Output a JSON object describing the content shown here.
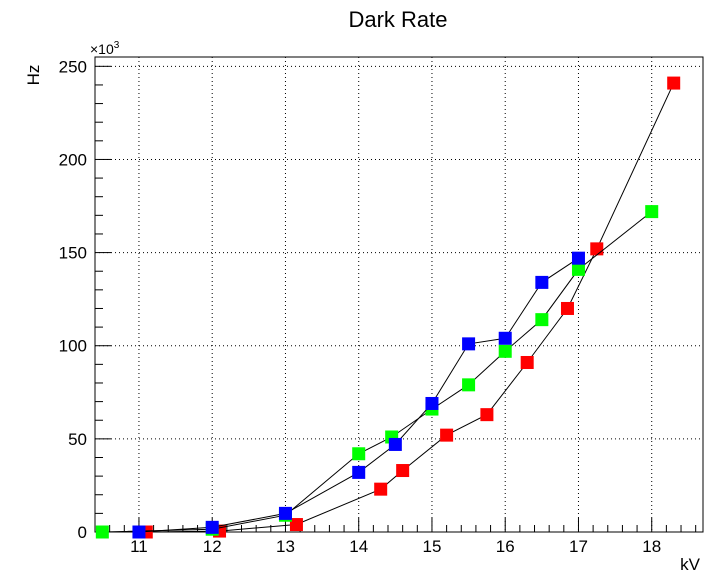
{
  "chart_data": {
    "type": "scatter",
    "title": "Dark Rate",
    "xlabel": "kV",
    "ylabel": "Hz",
    "y_multiplier": "×10",
    "y_multiplier_exp": "3",
    "xlim": [
      10.4,
      18.7
    ],
    "ylim": [
      0,
      255
    ],
    "x_ticks": [
      11,
      12,
      13,
      14,
      15,
      16,
      17,
      18
    ],
    "y_ticks": [
      0,
      50,
      100,
      150,
      200,
      250
    ],
    "grid": true,
    "series": [
      {
        "color": "#ff0000",
        "x": [
          11.1,
          12.1,
          13.15,
          14.3,
          14.6,
          15.2,
          15.75,
          16.3,
          16.85,
          17.25,
          18.3
        ],
        "y": [
          0,
          0.5,
          4,
          23,
          33,
          52,
          63,
          91,
          120,
          152,
          241
        ]
      },
      {
        "color": "#00ff00",
        "x": [
          10.5,
          12.0,
          13.0,
          14.0,
          14.45,
          15.0,
          15.5,
          16.0,
          16.5,
          17.0,
          18.0
        ],
        "y": [
          0,
          1.5,
          9,
          42,
          51,
          66,
          79,
          97,
          114,
          141,
          172
        ]
      },
      {
        "color": "#0000ff",
        "x": [
          11.0,
          12.0,
          13.0,
          14.0,
          14.5,
          15.0,
          15.5,
          16.0,
          16.5,
          17.0
        ],
        "y": [
          0,
          2.5,
          10,
          32,
          47,
          69,
          101,
          104,
          134,
          147
        ]
      }
    ]
  }
}
